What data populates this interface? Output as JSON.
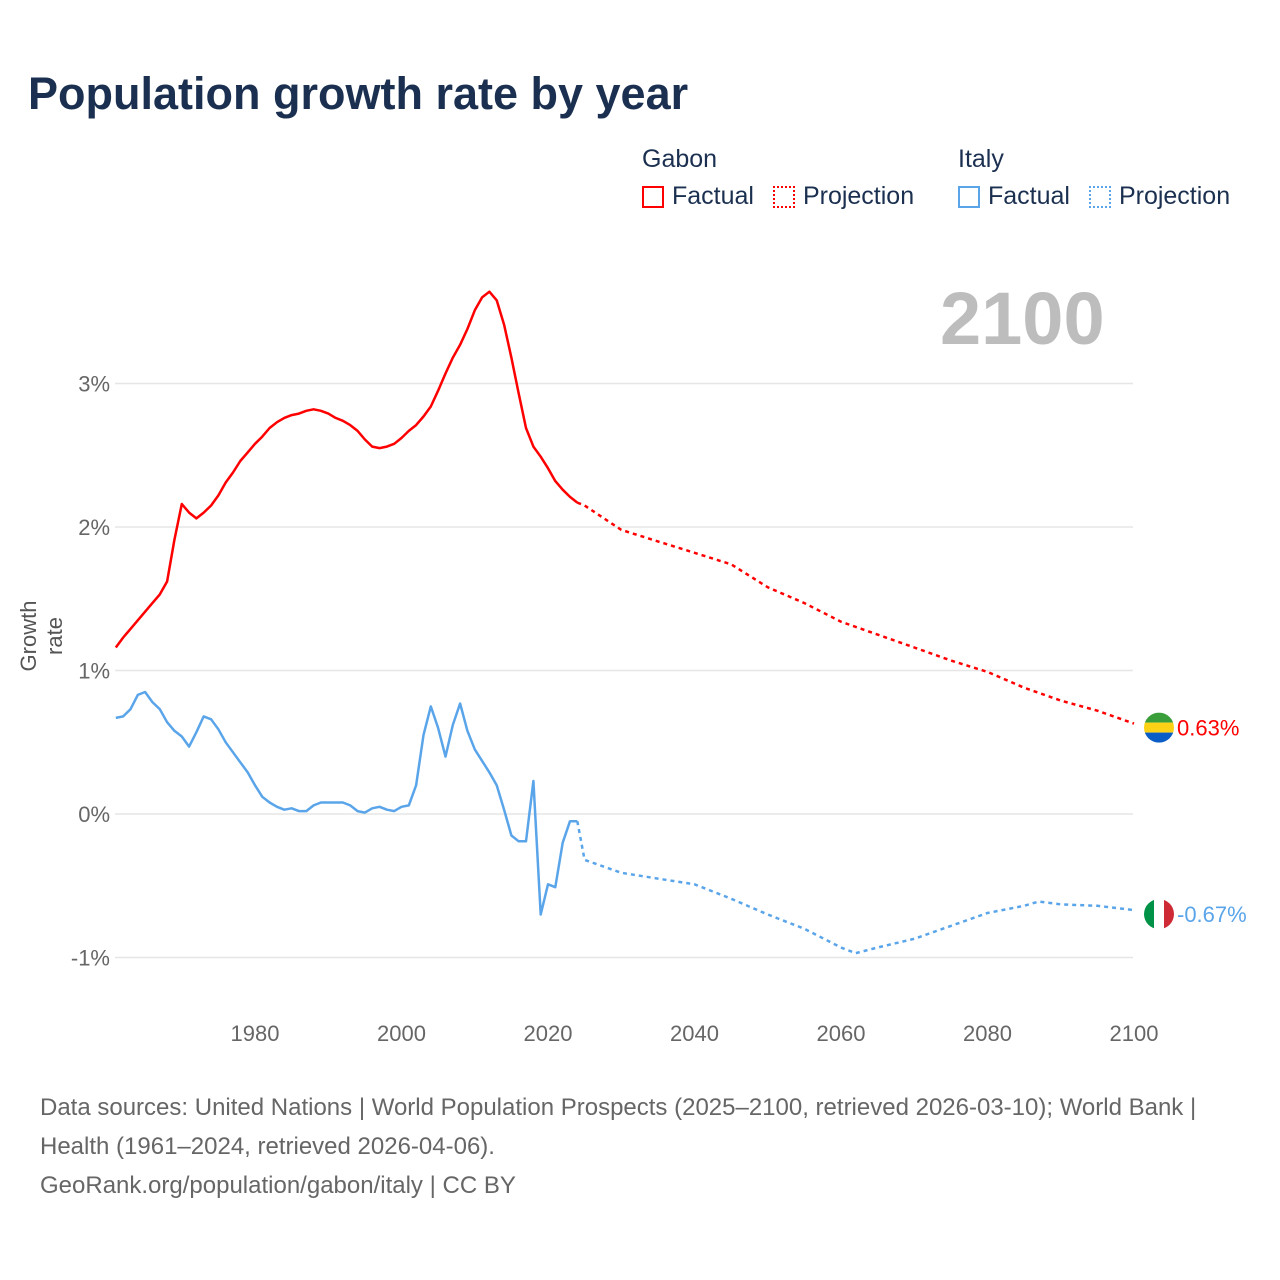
{
  "title": "Population growth rate by year",
  "current_year": "2100",
  "legend": [
    {
      "group": "Gabon",
      "factual": "Factual",
      "projection": "Projection",
      "color": "#ff0000"
    },
    {
      "group": "Italy",
      "factual": "Factual",
      "projection": "Projection",
      "color": "#5aa5ea"
    }
  ],
  "source": {
    "line1": "Data sources: United Nations | World Population Prospects (2025–2100, retrieved 2026-03-10); World Bank | Health (1961–2024, retrieved 2026-04-06).",
    "line2": "GeoRank.org/population/gabon/italy | CC BY"
  },
  "chart_data": {
    "type": "line",
    "title": "Population growth rate by year",
    "xlabel": "",
    "ylabel": "Growth rate",
    "xlim": [
      1961,
      2100
    ],
    "ylim": [
      -1.3,
      3.7
    ],
    "x_ticks": [
      1980,
      2000,
      2020,
      2040,
      2060,
      2080,
      2100
    ],
    "y_ticks": [
      {
        "v": 3,
        "label": "3%"
      },
      {
        "v": 2,
        "label": "2%"
      },
      {
        "v": 1,
        "label": "1%"
      },
      {
        "v": 0,
        "label": "0%"
      },
      {
        "v": -1,
        "label": "-1%"
      }
    ],
    "grid": true,
    "series": [
      {
        "name": "Gabon",
        "color": "#ff0000",
        "end_label": "0.63%",
        "flag": [
          "#3a9e3a",
          "#fcd116",
          "#0a5cc7"
        ],
        "factual": {
          "x": [
            1961,
            1962,
            1963,
            1964,
            1965,
            1966,
            1967,
            1968,
            1969,
            1970,
            1971,
            1972,
            1973,
            1974,
            1975,
            1976,
            1977,
            1978,
            1979,
            1980,
            1981,
            1982,
            1983,
            1984,
            1985,
            1986,
            1987,
            1988,
            1989,
            1990,
            1991,
            1992,
            1993,
            1994,
            1995,
            1996,
            1997,
            1998,
            1999,
            2000,
            2001,
            2002,
            2003,
            2004,
            2005,
            2006,
            2007,
            2008,
            2009,
            2010,
            2011,
            2012,
            2013,
            2014,
            2015,
            2016,
            2017,
            2018,
            2019,
            2020,
            2021,
            2022,
            2023,
            2024
          ],
          "y": [
            1.16,
            1.23,
            1.29,
            1.35,
            1.41,
            1.47,
            1.53,
            1.62,
            1.91,
            2.16,
            2.1,
            2.06,
            2.1,
            2.15,
            2.22,
            2.31,
            2.38,
            2.46,
            2.52,
            2.58,
            2.63,
            2.69,
            2.73,
            2.76,
            2.78,
            2.79,
            2.81,
            2.82,
            2.81,
            2.79,
            2.76,
            2.74,
            2.71,
            2.67,
            2.61,
            2.56,
            2.55,
            2.56,
            2.58,
            2.62,
            2.67,
            2.71,
            2.77,
            2.84,
            2.95,
            3.07,
            3.18,
            3.27,
            3.38,
            3.51,
            3.6,
            3.64,
            3.58,
            3.41,
            3.18,
            2.93,
            2.69,
            2.56,
            2.49,
            2.41,
            2.32,
            2.26,
            2.21,
            2.17
          ]
        },
        "projection": {
          "x": [
            2024,
            2025,
            2030,
            2035,
            2040,
            2045,
            2050,
            2055,
            2060,
            2065,
            2070,
            2075,
            2080,
            2085,
            2090,
            2095,
            2100
          ],
          "y": [
            2.17,
            2.15,
            1.98,
            1.9,
            1.82,
            1.74,
            1.58,
            1.47,
            1.34,
            1.25,
            1.16,
            1.07,
            0.99,
            0.88,
            0.79,
            0.72,
            0.63
          ]
        }
      },
      {
        "name": "Italy",
        "color": "#5aa5ea",
        "end_label": "-0.67%",
        "flag": [
          "#009246",
          "#ffffff",
          "#ce2b37"
        ],
        "factual": {
          "x": [
            1961,
            1962,
            1963,
            1964,
            1965,
            1966,
            1967,
            1968,
            1969,
            1970,
            1971,
            1972,
            1973,
            1974,
            1975,
            1976,
            1977,
            1978,
            1979,
            1980,
            1981,
            1982,
            1983,
            1984,
            1985,
            1986,
            1987,
            1988,
            1989,
            1990,
            1991,
            1992,
            1993,
            1994,
            1995,
            1996,
            1997,
            1998,
            1999,
            2000,
            2001,
            2002,
            2003,
            2004,
            2005,
            2006,
            2007,
            2008,
            2009,
            2010,
            2011,
            2012,
            2013,
            2014,
            2015,
            2016,
            2017,
            2018,
            2019,
            2020,
            2021,
            2022,
            2023,
            2024
          ],
          "y": [
            0.67,
            0.68,
            0.73,
            0.83,
            0.85,
            0.78,
            0.73,
            0.64,
            0.58,
            0.54,
            0.47,
            0.57,
            0.68,
            0.66,
            0.59,
            0.5,
            0.43,
            0.36,
            0.29,
            0.2,
            0.12,
            0.08,
            0.05,
            0.03,
            0.04,
            0.02,
            0.02,
            0.06,
            0.08,
            0.08,
            0.08,
            0.08,
            0.06,
            0.02,
            0.01,
            0.04,
            0.05,
            0.03,
            0.02,
            0.05,
            0.06,
            0.2,
            0.55,
            0.75,
            0.6,
            0.4,
            0.62,
            0.77,
            0.58,
            0.45,
            0.37,
            0.29,
            0.2,
            0.03,
            -0.15,
            -0.19,
            -0.19,
            0.23,
            -0.7,
            -0.49,
            -0.51,
            -0.2,
            -0.05,
            -0.05
          ]
        },
        "projection": {
          "x": [
            2024,
            2025,
            2030,
            2035,
            2040,
            2045,
            2050,
            2055,
            2060,
            2062,
            2065,
            2070,
            2075,
            2080,
            2085,
            2087,
            2090,
            2095,
            2100
          ],
          "y": [
            -0.05,
            -0.32,
            -0.41,
            -0.45,
            -0.49,
            -0.59,
            -0.7,
            -0.8,
            -0.93,
            -0.97,
            -0.93,
            -0.87,
            -0.78,
            -0.69,
            -0.64,
            -0.61,
            -0.63,
            -0.64,
            -0.67
          ]
        }
      }
    ]
  }
}
